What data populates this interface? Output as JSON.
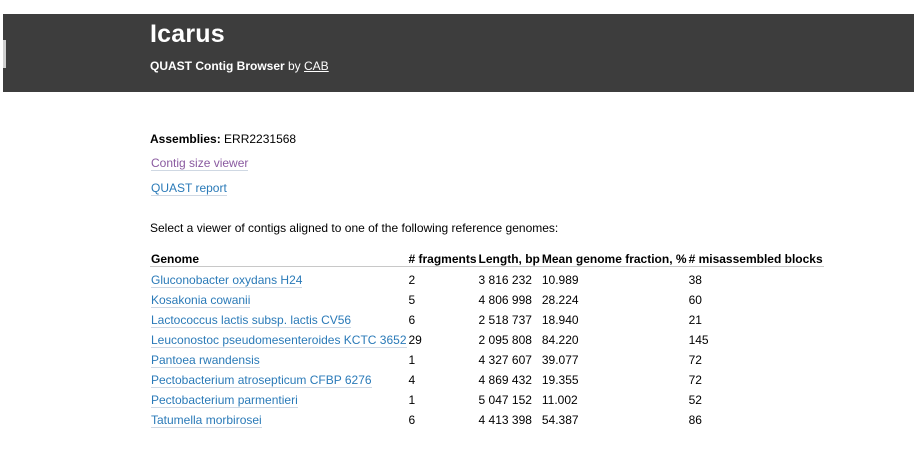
{
  "header": {
    "title": "Icarus",
    "subtitle_bold": "QUAST Contig Browser",
    "subtitle_by": " by ",
    "subtitle_link": "CAB"
  },
  "assemblies": {
    "label": "Assemblies:",
    "value": "ERR2231568"
  },
  "links": {
    "contig_size_viewer": "Contig size viewer",
    "quast_report": "QUAST report"
  },
  "prompt": "Select a viewer of contigs aligned to one of the following reference genomes:",
  "table": {
    "headers": [
      "Genome",
      "# fragments",
      "Length, bp",
      "Mean genome fraction, %",
      "# misassembled blocks"
    ],
    "rows": [
      [
        "Gluconobacter oxydans H24",
        "2",
        "3 816 232",
        "10.989",
        "38"
      ],
      [
        "Kosakonia cowanii",
        "5",
        "4 806 998",
        "28.224",
        "60"
      ],
      [
        "Lactococcus lactis subsp. lactis CV56",
        "6",
        "2 518 737",
        "18.940",
        "21"
      ],
      [
        "Leuconostoc pseudomesenteroides KCTC 3652",
        "29",
        "2 095 808",
        "84.220",
        "145"
      ],
      [
        "Pantoea rwandensis",
        "1",
        "4 327 607",
        "39.077",
        "72"
      ],
      [
        "Pectobacterium atrosepticum CFBP 6276",
        "4",
        "4 869 432",
        "19.355",
        "72"
      ],
      [
        "Pectobacterium parmentieri",
        "1",
        "5 047 152",
        "11.002",
        "52"
      ],
      [
        "Tatumella morbirosei",
        "6",
        "4 413 398",
        "54.387",
        "86"
      ]
    ]
  },
  "colors": {
    "header_bg": "#3d3d3d",
    "link": "#2a7ab8",
    "visited_link": "#8a5aa0"
  }
}
